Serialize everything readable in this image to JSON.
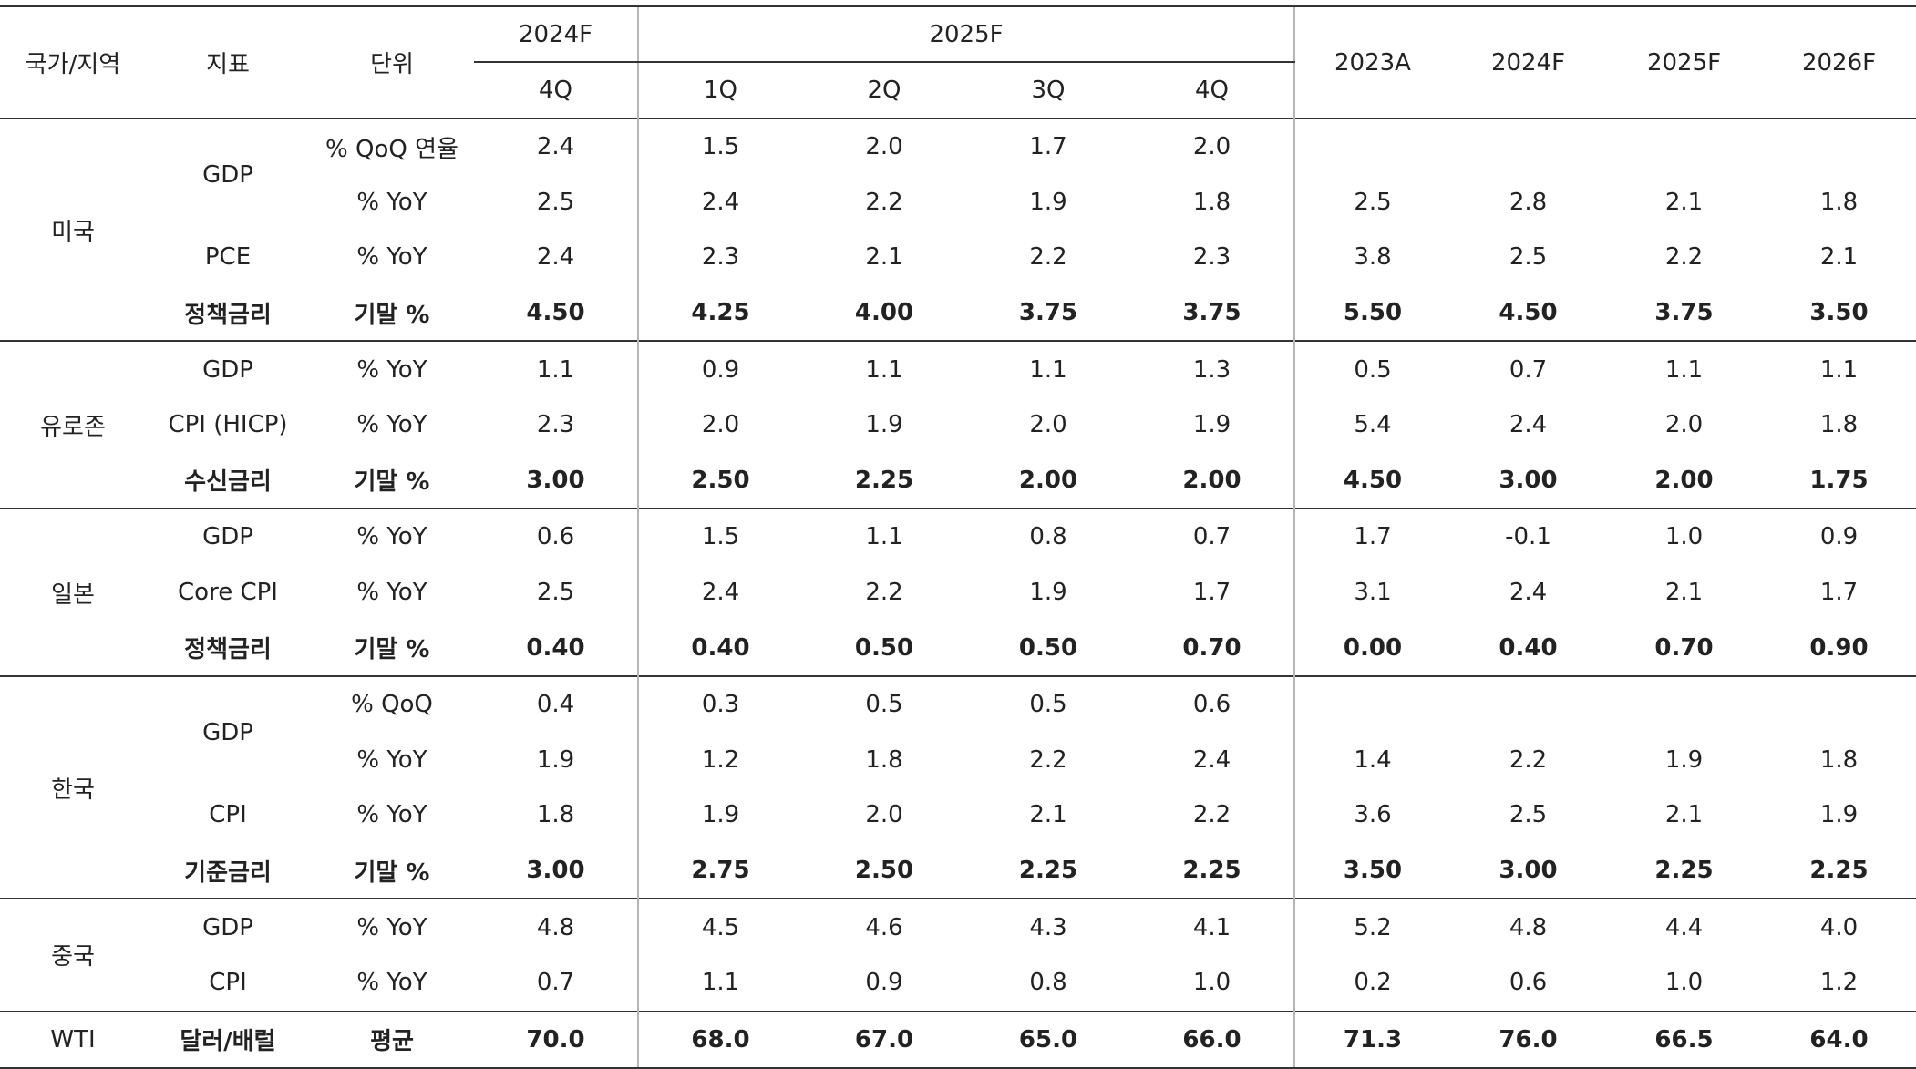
{
  "header": {
    "region": "국가/지역",
    "indicator": "지표",
    "unit": "단위",
    "quarter_group_2024": "2024F",
    "quarter_group_2025": "2025F",
    "quarters": [
      "4Q",
      "1Q",
      "2Q",
      "3Q",
      "4Q"
    ],
    "annual": [
      "2023A",
      "2024F",
      "2025F",
      "2026F"
    ]
  },
  "regions": [
    {
      "name": "미국",
      "rows": [
        {
          "indicator": "GDP",
          "unit": "% QoQ 연율",
          "q": [
            "2.4",
            "1.5",
            "2.0",
            "1.7",
            "2.0"
          ],
          "a": [
            "",
            "",
            "",
            ""
          ]
        },
        {
          "indicator": "",
          "unit": "% YoY",
          "q": [
            "2.5",
            "2.4",
            "2.2",
            "1.9",
            "1.8"
          ],
          "a": [
            "2.5",
            "2.8",
            "2.1",
            "1.8"
          ]
        },
        {
          "indicator": "PCE",
          "unit": "% YoY",
          "q": [
            "2.4",
            "2.3",
            "2.1",
            "2.2",
            "2.3"
          ],
          "a": [
            "3.8",
            "2.5",
            "2.2",
            "2.1"
          ]
        },
        {
          "indicator": "정책금리",
          "unit": "기말 %",
          "q": [
            "4.50",
            "4.25",
            "4.00",
            "3.75",
            "3.75"
          ],
          "a": [
            "5.50",
            "4.50",
            "3.75",
            "3.50"
          ]
        }
      ]
    },
    {
      "name": "유로존",
      "rows": [
        {
          "indicator": "GDP",
          "unit": "% YoY",
          "q": [
            "1.1",
            "0.9",
            "1.1",
            "1.1",
            "1.3"
          ],
          "a": [
            "0.5",
            "0.7",
            "1.1",
            "1.1"
          ]
        },
        {
          "indicator": "CPI (HICP)",
          "unit": "% YoY",
          "q": [
            "2.3",
            "2.0",
            "1.9",
            "2.0",
            "1.9"
          ],
          "a": [
            "5.4",
            "2.4",
            "2.0",
            "1.8"
          ]
        },
        {
          "indicator": "수신금리",
          "unit": "기말 %",
          "q": [
            "3.00",
            "2.50",
            "2.25",
            "2.00",
            "2.00"
          ],
          "a": [
            "4.50",
            "3.00",
            "2.00",
            "1.75"
          ]
        }
      ]
    },
    {
      "name": "일본",
      "rows": [
        {
          "indicator": "GDP",
          "unit": "% YoY",
          "q": [
            "0.6",
            "1.5",
            "1.1",
            "0.8",
            "0.7"
          ],
          "a": [
            "1.7",
            "-0.1",
            "1.0",
            "0.9"
          ]
        },
        {
          "indicator": "Core CPI",
          "unit": "% YoY",
          "q": [
            "2.5",
            "2.4",
            "2.2",
            "1.9",
            "1.7"
          ],
          "a": [
            "3.1",
            "2.4",
            "2.1",
            "1.7"
          ]
        },
        {
          "indicator": "정책금리",
          "unit": "기말 %",
          "q": [
            "0.40",
            "0.40",
            "0.50",
            "0.50",
            "0.70"
          ],
          "a": [
            "0.00",
            "0.40",
            "0.70",
            "0.90"
          ]
        }
      ]
    },
    {
      "name": "한국",
      "rows": [
        {
          "indicator": "GDP",
          "unit": "% QoQ",
          "q": [
            "0.4",
            "0.3",
            "0.5",
            "0.5",
            "0.6"
          ],
          "a": [
            "",
            "",
            "",
            ""
          ]
        },
        {
          "indicator": "",
          "unit": "% YoY",
          "q": [
            "1.9",
            "1.2",
            "1.8",
            "2.2",
            "2.4"
          ],
          "a": [
            "1.4",
            "2.2",
            "1.9",
            "1.8"
          ]
        },
        {
          "indicator": "CPI",
          "unit": "% YoY",
          "q": [
            "1.8",
            "1.9",
            "2.0",
            "2.1",
            "2.2"
          ],
          "a": [
            "3.6",
            "2.5",
            "2.1",
            "1.9"
          ]
        },
        {
          "indicator": "기준금리",
          "unit": "기말 %",
          "q": [
            "3.00",
            "2.75",
            "2.50",
            "2.25",
            "2.25"
          ],
          "a": [
            "3.50",
            "3.00",
            "2.25",
            "2.25"
          ]
        }
      ]
    },
    {
      "name": "중국",
      "rows": [
        {
          "indicator": "GDP",
          "unit": "% YoY",
          "q": [
            "4.8",
            "4.5",
            "4.6",
            "4.3",
            "4.1"
          ],
          "a": [
            "5.2",
            "4.8",
            "4.4",
            "4.0"
          ]
        },
        {
          "indicator": "CPI",
          "unit": "% YoY",
          "q": [
            "0.7",
            "1.1",
            "0.9",
            "0.8",
            "1.0"
          ],
          "a": [
            "0.2",
            "0.6",
            "1.0",
            "1.2"
          ]
        }
      ]
    },
    {
      "name": "WTI",
      "rows": [
        {
          "indicator": "달러/배럴",
          "unit": "평균",
          "q": [
            "70.0",
            "68.0",
            "67.0",
            "65.0",
            "66.0"
          ],
          "a": [
            "71.3",
            "76.0",
            "66.5",
            "64.0"
          ]
        }
      ]
    }
  ]
}
